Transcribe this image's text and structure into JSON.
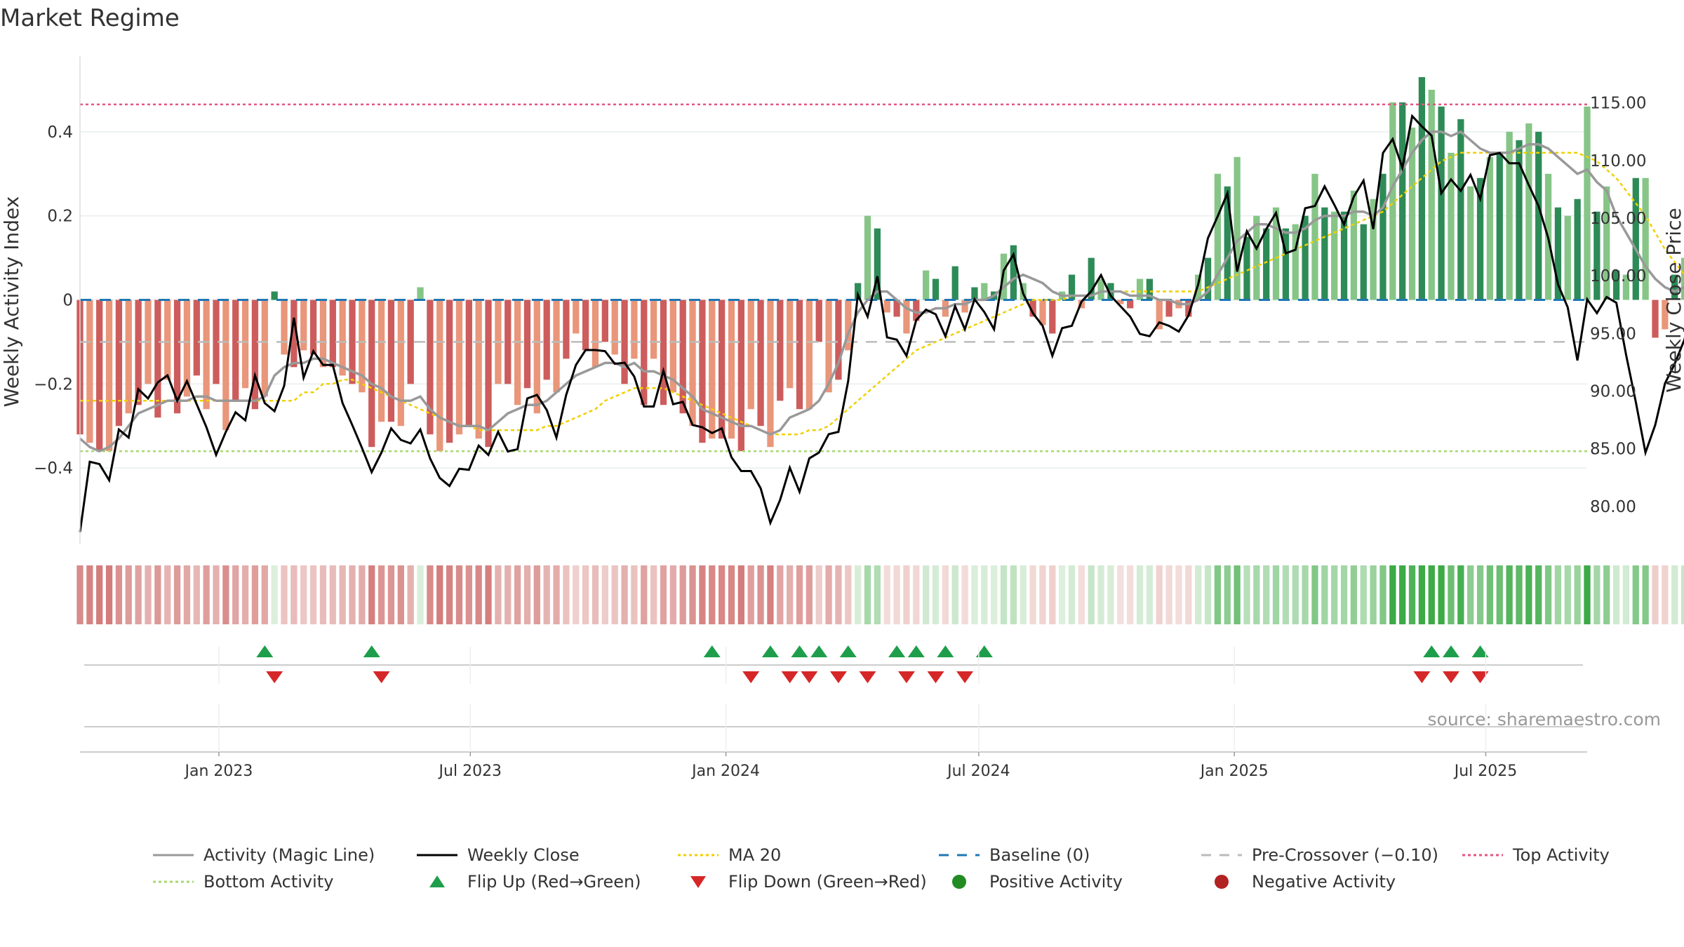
{
  "title": "Market Regime",
  "source": "source: sharemaestro.com",
  "colors": {
    "pos_dark": "#2e8b57",
    "pos_light": "#86c587",
    "neg_dark": "#cd5c5c",
    "neg_light": "#e9967a",
    "magic": "#999999",
    "close": "#000000",
    "ma": "#f0d000",
    "baseline": "#1f77b4",
    "precross": "#bbbbbb",
    "top": "#e75480",
    "bottom": "#a8d870",
    "flip_up": "#1e9e4a",
    "flip_down": "#d62728",
    "pos_dot": "#228b22",
    "neg_dot": "#b22222"
  },
  "chart_data": {
    "type": "bar",
    "title": "Market Regime",
    "ylabel": "Weekly Activity Index",
    "y2label": "Weekly Close Price",
    "ylim": [
      -0.58,
      0.58
    ],
    "y2lim": [
      76.7,
      119.0
    ],
    "yticks": [
      -0.4,
      -0.2,
      0,
      0.2,
      0.4
    ],
    "ytick_labels": [
      "−0.4",
      "−0.2",
      "0",
      "0.2",
      "0.4"
    ],
    "y2ticks": [
      80,
      85,
      90,
      95,
      100,
      105,
      110,
      115
    ],
    "y2tick_labels": [
      "80.00",
      "85.00",
      "90.00",
      "95.00",
      "100.00",
      "105.00",
      "110.00",
      "115.00"
    ],
    "x_start": "2022-09-23",
    "x_end": "2025-09-12",
    "xticks": [
      "2023-01-01",
      "2023-07-01",
      "2024-01-01",
      "2024-07-01",
      "2025-01-01",
      "2025-07-01"
    ],
    "xtick_labels": [
      "Jan 2023",
      "Jul 2023",
      "Jan 2024",
      "Jul 2024",
      "Jan 2025",
      "Jul 2025"
    ],
    "top_activity": 0.465,
    "bottom_activity": -0.36,
    "pre_crossover": -0.1,
    "grid": true,
    "legend_position": "bottom",
    "series": [
      {
        "name": "Weekly Activity Index",
        "values": [
          -0.32,
          -0.34,
          -0.36,
          -0.36,
          -0.3,
          -0.27,
          -0.25,
          -0.2,
          -0.28,
          -0.19,
          -0.27,
          -0.23,
          -0.18,
          -0.26,
          -0.2,
          -0.31,
          -0.24,
          -0.21,
          -0.26,
          -0.23,
          0.02,
          -0.13,
          -0.16,
          -0.12,
          -0.13,
          -0.16,
          -0.16,
          -0.18,
          -0.2,
          -0.22,
          -0.35,
          -0.29,
          -0.29,
          -0.3,
          -0.2,
          0.03,
          -0.32,
          -0.36,
          -0.34,
          -0.32,
          -0.3,
          -0.33,
          -0.35,
          -0.2,
          -0.2,
          -0.25,
          -0.21,
          -0.27,
          -0.19,
          -0.22,
          -0.14,
          -0.08,
          -0.12,
          -0.16,
          -0.1,
          -0.13,
          -0.2,
          -0.14,
          -0.25,
          -0.14,
          -0.25,
          -0.22,
          -0.27,
          -0.3,
          -0.34,
          -0.33,
          -0.33,
          -0.33,
          -0.36,
          -0.26,
          -0.3,
          -0.35,
          -0.24,
          -0.21,
          -0.26,
          -0.26,
          -0.1,
          -0.22,
          -0.19,
          -0.12,
          0.04,
          0.2,
          0.17,
          -0.03,
          -0.04,
          -0.08,
          -0.05,
          0.07,
          0.05,
          -0.04,
          0.08,
          -0.03,
          0.03,
          0.04,
          0.02,
          0.11,
          0.13,
          0.04,
          -0.04,
          -0.06,
          -0.08,
          0.02,
          0.06,
          -0.02,
          0.1,
          0.05,
          0.04,
          -0.01,
          -0.02,
          0.05,
          0.05,
          -0.07,
          -0.04,
          -0.02,
          -0.04,
          0.06,
          0.1,
          0.3,
          0.27,
          0.34,
          0.15,
          0.2,
          0.17,
          0.22,
          0.17,
          0.18,
          0.2,
          0.3,
          0.22,
          0.21,
          0.21,
          0.26,
          0.18,
          0.24,
          0.3,
          0.47,
          0.47,
          0.41,
          0.53,
          0.5,
          0.46,
          0.35,
          0.43,
          0.27,
          0.29,
          0.34,
          0.35,
          0.4,
          0.38,
          0.42,
          0.4,
          0.3,
          0.22,
          0.2,
          0.24,
          0.46,
          0.21,
          0.27,
          0.07,
          0.06,
          0.29,
          0.29,
          -0.09,
          -0.07,
          0.06,
          0.1,
          0.07,
          0.02,
          -0.01,
          0.06,
          0.06,
          0.05,
          0.1,
          0.06,
          0.17,
          0.2,
          0.3,
          0.18,
          0.25,
          0.17,
          0.06,
          0.15,
          0.12,
          0.11,
          0.2,
          0.31,
          0.24,
          0.27,
          0.25,
          0.27,
          0.25
        ]
      },
      {
        "name": "Activity (Magic Line)",
        "values": [
          -0.33,
          -0.35,
          -0.36,
          -0.35,
          -0.33,
          -0.3,
          -0.27,
          -0.26,
          -0.25,
          -0.24,
          -0.24,
          -0.24,
          -0.23,
          -0.23,
          -0.24,
          -0.24,
          -0.24,
          -0.24,
          -0.24,
          -0.23,
          -0.18,
          -0.16,
          -0.15,
          -0.15,
          -0.14,
          -0.14,
          -0.15,
          -0.16,
          -0.17,
          -0.18,
          -0.2,
          -0.21,
          -0.23,
          -0.24,
          -0.24,
          -0.23,
          -0.26,
          -0.28,
          -0.29,
          -0.3,
          -0.3,
          -0.3,
          -0.31,
          -0.29,
          -0.27,
          -0.26,
          -0.25,
          -0.25,
          -0.24,
          -0.22,
          -0.2,
          -0.18,
          -0.17,
          -0.16,
          -0.15,
          -0.15,
          -0.16,
          -0.15,
          -0.17,
          -0.17,
          -0.18,
          -0.19,
          -0.21,
          -0.23,
          -0.26,
          -0.27,
          -0.28,
          -0.29,
          -0.3,
          -0.3,
          -0.31,
          -0.32,
          -0.31,
          -0.28,
          -0.27,
          -0.26,
          -0.24,
          -0.2,
          -0.15,
          -0.08,
          -0.03,
          0.0,
          0.02,
          0.02,
          0.0,
          -0.02,
          -0.03,
          -0.03,
          -0.02,
          -0.02,
          -0.01,
          -0.01,
          0.0,
          0.0,
          0.01,
          0.03,
          0.05,
          0.06,
          0.05,
          0.04,
          0.02,
          0.01,
          0.01,
          0.01,
          0.01,
          0.02,
          0.02,
          0.02,
          0.01,
          0.01,
          0.01,
          0.0,
          0.0,
          -0.01,
          -0.01,
          0.0,
          0.02,
          0.06,
          0.1,
          0.14,
          0.16,
          0.18,
          0.18,
          0.17,
          0.16,
          0.16,
          0.17,
          0.19,
          0.2,
          0.2,
          0.2,
          0.21,
          0.21,
          0.2,
          0.22,
          0.27,
          0.31,
          0.35,
          0.38,
          0.4,
          0.4,
          0.39,
          0.4,
          0.38,
          0.36,
          0.35,
          0.35,
          0.35,
          0.36,
          0.37,
          0.37,
          0.36,
          0.34,
          0.32,
          0.3,
          0.31,
          0.28,
          0.26,
          0.2,
          0.16,
          0.12,
          0.08,
          0.05,
          0.03,
          0.02,
          0.03,
          0.04,
          0.03,
          0.02,
          0.02,
          0.03,
          0.04,
          0.04,
          0.05,
          0.06,
          0.08,
          0.1,
          0.13,
          0.15,
          0.16,
          0.16,
          0.15,
          0.15,
          0.15,
          0.14,
          0.14,
          0.16,
          0.18,
          0.19,
          0.2,
          0.22,
          0.23
        ]
      },
      {
        "name": "Weekly Close",
        "values": [
          77.7,
          83.8,
          83.6,
          82.2,
          86.6,
          85.9,
          90.1,
          89.3,
          90.7,
          91.3,
          89.1,
          90.8,
          88.8,
          86.8,
          84.4,
          86.4,
          88.1,
          87.4,
          91.3,
          88.9,
          88.2,
          90.4,
          96.3,
          91.1,
          93.4,
          92.2,
          92.2,
          88.9,
          87.0,
          85.0,
          82.9,
          84.6,
          86.7,
          85.7,
          85.4,
          86.6,
          84.1,
          82.4,
          81.7,
          83.2,
          83.1,
          85.2,
          84.4,
          86.4,
          84.7,
          84.9,
          89.3,
          89.6,
          88.3,
          85.9,
          89.6,
          92.2,
          93.5,
          93.5,
          93.4,
          92.3,
          92.4,
          91.2,
          88.6,
          88.6,
          91.7,
          88.8,
          89.0,
          87.0,
          86.8,
          86.3,
          86.7,
          84.2,
          83.0,
          83.0,
          81.5,
          78.5,
          80.5,
          83.3,
          81.2,
          84.1,
          84.6,
          86.2,
          86.4,
          90.8,
          98.3,
          96.4,
          99.9,
          94.6,
          94.4,
          93.0,
          96.1,
          97.0,
          96.6,
          94.7,
          97.3,
          95.3,
          97.9,
          96.8,
          95.3,
          100.4,
          101.8,
          98.4,
          96.7,
          95.6,
          93.0,
          95.4,
          95.6,
          97.7,
          98.6,
          100.0,
          98.2,
          97.3,
          96.4,
          94.9,
          94.7,
          95.9,
          95.6,
          95.1,
          96.5,
          99.2,
          103.2,
          105.1,
          107.1,
          100.3,
          103.8,
          102.3,
          104.0,
          105.4,
          101.9,
          102.2,
          105.8,
          106.0,
          107.7,
          106.1,
          104.4,
          106.8,
          108.2,
          104.0,
          110.6,
          111.8,
          109.3,
          113.8,
          112.9,
          112.1,
          107.1,
          108.3,
          107.3,
          108.7,
          106.6,
          110.4,
          110.6,
          109.7,
          109.7,
          107.8,
          106.0,
          103.2,
          99.2,
          97.2,
          92.6,
          97.9,
          96.7,
          98.1,
          97.6,
          93.1,
          89.0,
          84.6,
          87.0,
          90.6,
          92.3,
          94.4,
          97.6,
          98.4,
          96.8,
          96.5,
          98.2,
          99.0,
          99.3,
          97.8,
          98.4,
          99.9,
          100.0,
          101.2,
          103.5,
          107.6,
          105.0,
          104.4,
          104.3,
          102.6,
          103.7,
          105.9,
          107.3,
          108.1,
          111.0,
          109.3,
          110.4,
          109.8,
          111.2
        ]
      },
      {
        "name": "MA 20",
        "values": [
          -0.24,
          -0.24,
          -0.24,
          -0.24,
          -0.24,
          -0.24,
          -0.24,
          -0.24,
          -0.24,
          -0.24,
          -0.24,
          -0.24,
          -0.24,
          -0.24,
          -0.24,
          -0.24,
          -0.24,
          -0.24,
          -0.24,
          -0.24,
          -0.24,
          -0.24,
          -0.24,
          -0.22,
          -0.22,
          -0.2,
          -0.2,
          -0.19,
          -0.19,
          -0.2,
          -0.21,
          -0.22,
          -0.23,
          -0.24,
          -0.25,
          -0.26,
          -0.27,
          -0.28,
          -0.29,
          -0.3,
          -0.3,
          -0.31,
          -0.31,
          -0.31,
          -0.31,
          -0.31,
          -0.31,
          -0.31,
          -0.3,
          -0.3,
          -0.29,
          -0.28,
          -0.27,
          -0.26,
          -0.24,
          -0.23,
          -0.22,
          -0.21,
          -0.21,
          -0.21,
          -0.21,
          -0.22,
          -0.23,
          -0.24,
          -0.25,
          -0.26,
          -0.27,
          -0.28,
          -0.29,
          -0.3,
          -0.31,
          -0.32,
          -0.32,
          -0.32,
          -0.32,
          -0.31,
          -0.31,
          -0.3,
          -0.28,
          -0.26,
          -0.24,
          -0.22,
          -0.2,
          -0.18,
          -0.16,
          -0.14,
          -0.12,
          -0.11,
          -0.1,
          -0.09,
          -0.08,
          -0.07,
          -0.06,
          -0.05,
          -0.04,
          -0.03,
          -0.02,
          -0.01,
          0.0,
          0.0,
          0.0,
          0.0,
          0.01,
          0.01,
          0.01,
          0.02,
          0.02,
          0.02,
          0.02,
          0.02,
          0.02,
          0.02,
          0.02,
          0.02,
          0.02,
          0.02,
          0.03,
          0.04,
          0.05,
          0.06,
          0.07,
          0.08,
          0.09,
          0.1,
          0.11,
          0.12,
          0.13,
          0.14,
          0.15,
          0.16,
          0.17,
          0.18,
          0.19,
          0.2,
          0.21,
          0.23,
          0.25,
          0.27,
          0.29,
          0.31,
          0.33,
          0.34,
          0.35,
          0.35,
          0.35,
          0.35,
          0.35,
          0.35,
          0.35,
          0.35,
          0.35,
          0.35,
          0.35,
          0.35,
          0.35,
          0.34,
          0.33,
          0.31,
          0.29,
          0.26,
          0.23,
          0.2,
          0.16,
          0.12,
          0.09,
          0.06,
          0.04,
          0.03,
          0.01,
          0.0,
          0.0,
          0.0,
          0.0,
          0.0,
          0.0,
          0.0,
          0.01,
          0.02,
          0.03,
          0.04,
          0.06,
          0.07,
          0.08,
          0.1,
          0.11,
          0.12,
          0.13,
          0.14,
          0.15,
          0.16,
          0.17,
          0.19,
          0.2,
          0.22,
          0.23,
          0.24
        ]
      }
    ],
    "regime_strip": "Weekly Activity Index colour band",
    "flip_up_dates": [
      "2023-02-03",
      "2023-04-21",
      "2023-12-22",
      "2024-02-02",
      "2024-02-23",
      "2024-03-08",
      "2024-03-29",
      "2024-05-03",
      "2024-05-17",
      "2024-06-07",
      "2024-07-05",
      "2025-05-23",
      "2025-06-06",
      "2025-06-27"
    ],
    "flip_down_dates": [
      "2023-02-10",
      "2023-04-28",
      "2024-01-19",
      "2024-02-16",
      "2024-03-01",
      "2024-03-22",
      "2024-04-12",
      "2024-05-10",
      "2024-05-31",
      "2024-06-21",
      "2025-05-16",
      "2025-06-06",
      "2025-06-27"
    ],
    "legend": [
      {
        "label": "Activity (Magic Line)",
        "kind": "line",
        "color": "#999999"
      },
      {
        "label": "Weekly Close",
        "kind": "line",
        "color": "#000000"
      },
      {
        "label": "MA 20",
        "kind": "dotted",
        "color": "#f0d000"
      },
      {
        "label": "Baseline (0)",
        "kind": "dashed",
        "color": "#1f77b4"
      },
      {
        "label": "Pre-Crossover (−0.10)",
        "kind": "dashed",
        "color": "#bbbbbb"
      },
      {
        "label": "Top Activity",
        "kind": "dotted",
        "color": "#e75480"
      },
      {
        "label": "Bottom Activity",
        "kind": "dotted",
        "color": "#a8d870"
      },
      {
        "label": "Flip Up (Red→Green)",
        "kind": "tri-up",
        "color": "#1e9e4a"
      },
      {
        "label": "Flip Down (Green→Red)",
        "kind": "tri-down",
        "color": "#d62728"
      },
      {
        "label": "Positive Activity",
        "kind": "dot",
        "color": "#228b22"
      },
      {
        "label": "Negative Activity",
        "kind": "dot",
        "color": "#b22222"
      }
    ]
  }
}
